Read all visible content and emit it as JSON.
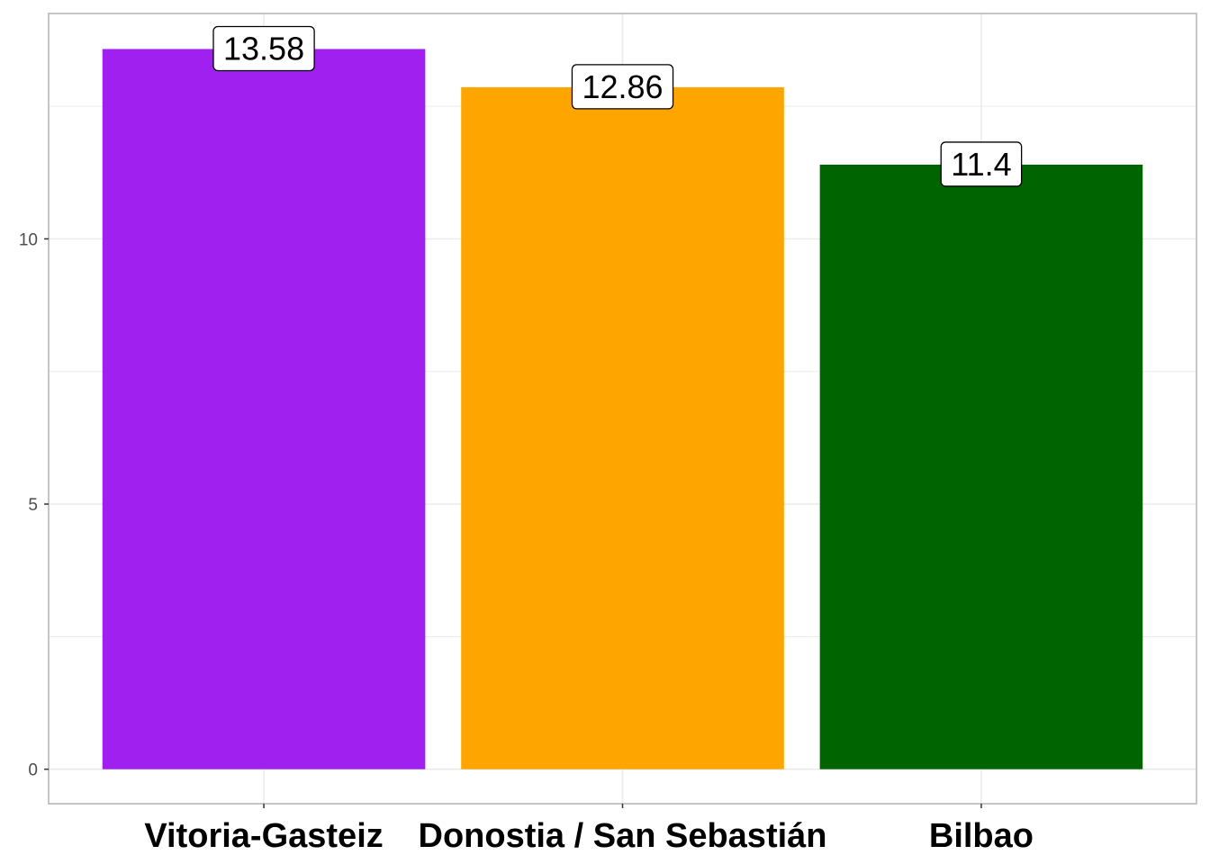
{
  "chart_data": {
    "type": "bar",
    "title": "",
    "xlabel": "",
    "ylabel": "",
    "categories": [
      "Vitoria-Gasteiz",
      "Donostia / San Sebastián",
      "Bilbao"
    ],
    "values": [
      13.58,
      12.86,
      11.4
    ],
    "data_labels": [
      "13.58",
      "12.86",
      "11.4"
    ],
    "colors": [
      "#A020F0",
      "#FFA500",
      "#006400"
    ],
    "ylim": [
      -0.65,
      14.25
    ],
    "y_ticks": [
      0,
      5,
      10
    ],
    "y_tick_labels": [
      "0",
      "5",
      "10"
    ],
    "y_minor_ticks": [
      2.5,
      7.5,
      12.5
    ],
    "grid": true,
    "legend": "none",
    "panel_border_color": "#b3b3b3",
    "grid_color": "#ebebeb"
  }
}
